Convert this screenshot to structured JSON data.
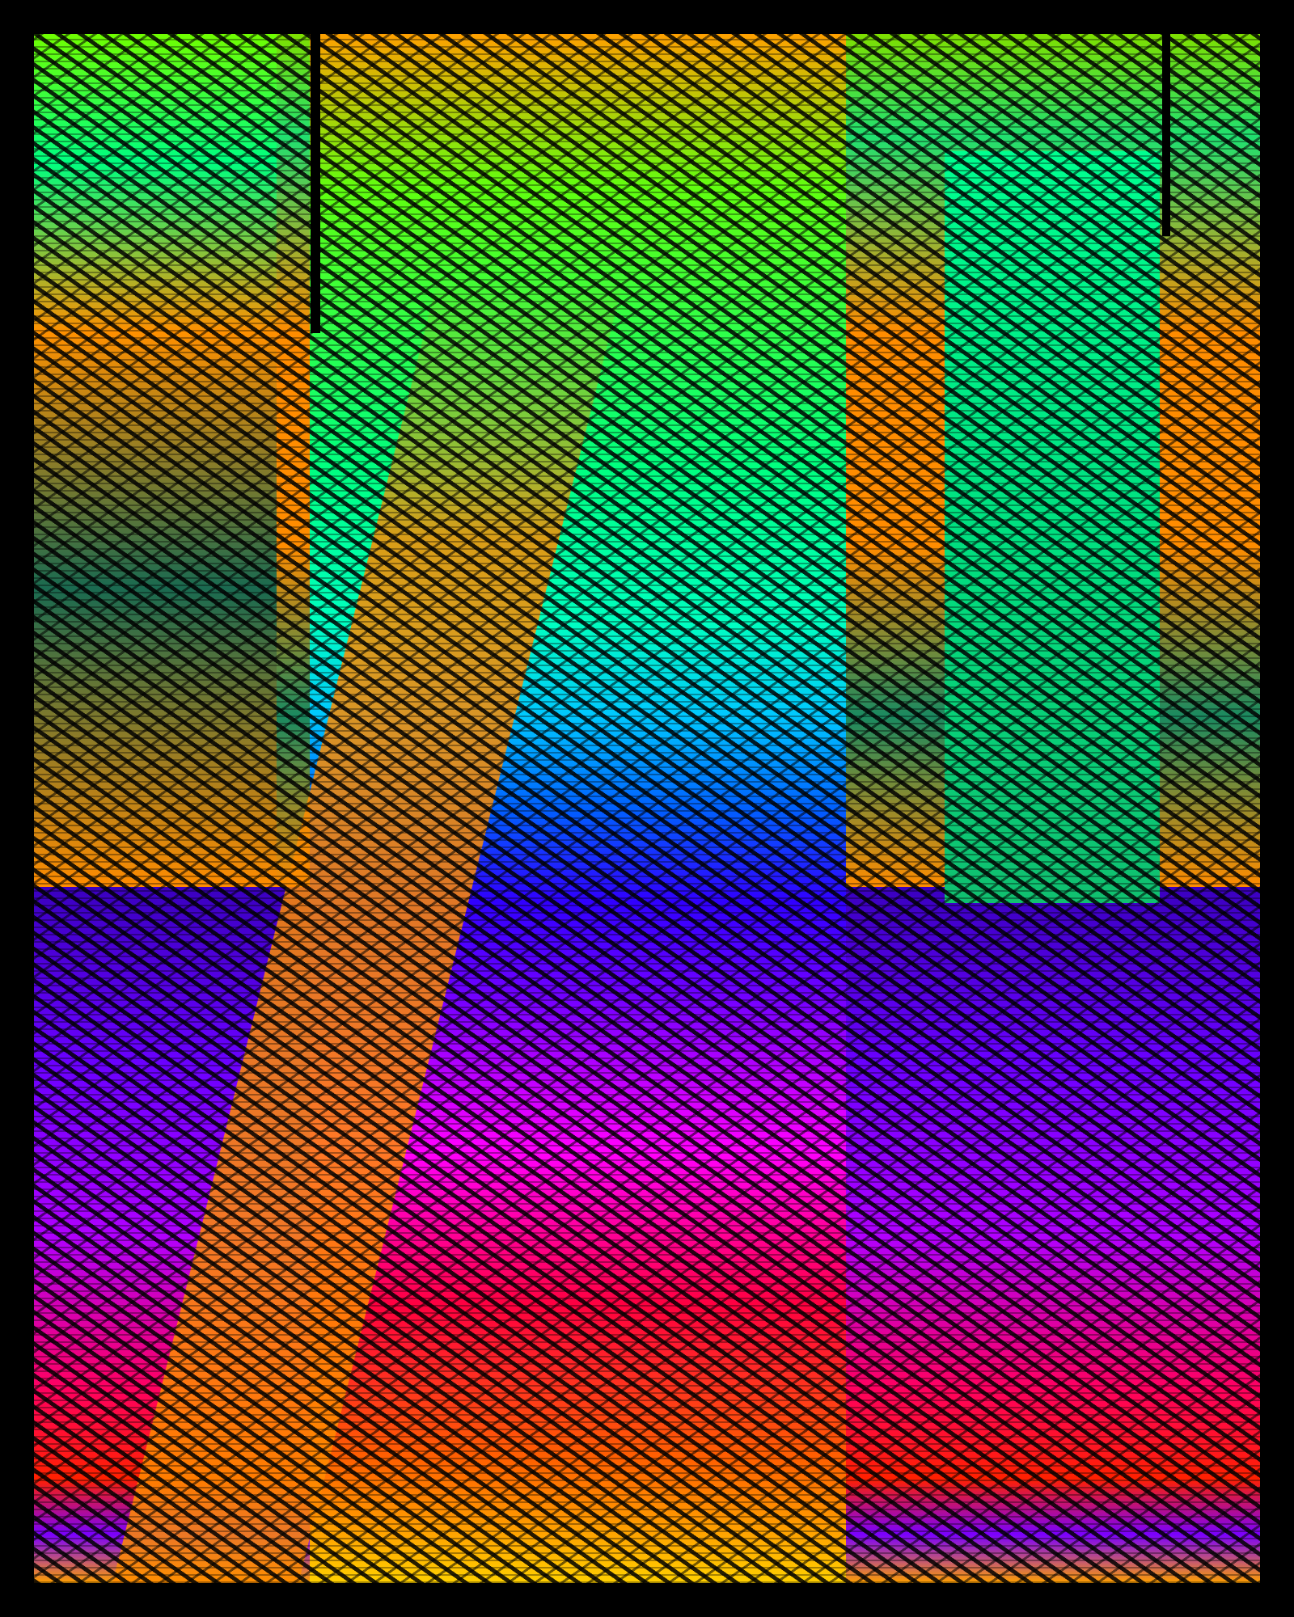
{
  "artwork": {
    "palette": {
      "background": "#000000",
      "green": "#00ff80",
      "lime": "#7fe000",
      "orange": "#ff8c00",
      "cyan": "#00c8ff",
      "blue": "#0060ff",
      "violet": "#6a00ff",
      "magenta": "#ff00ff",
      "red": "#ff2000",
      "yellow": "#ffd000"
    }
  }
}
